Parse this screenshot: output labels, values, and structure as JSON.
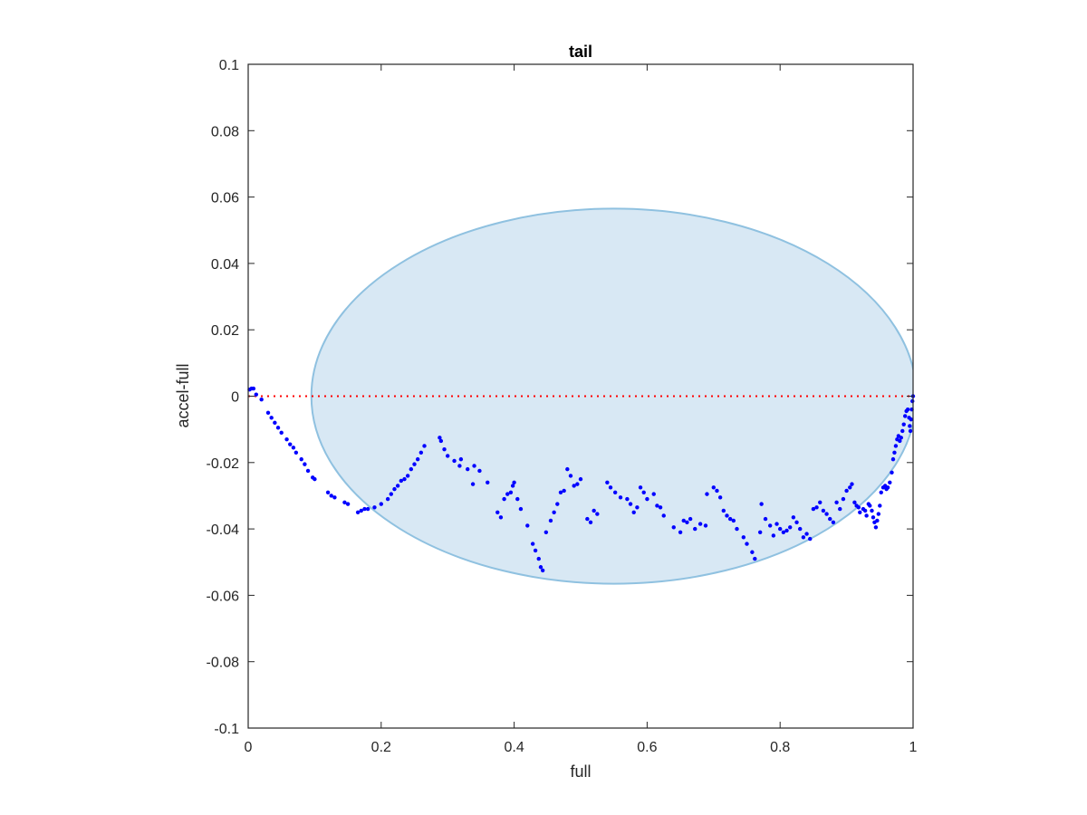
{
  "chart_data": {
    "type": "scatter",
    "title": "tail",
    "xlabel": "full",
    "ylabel": "accel-full",
    "xlim": [
      0,
      1
    ],
    "ylim": [
      -0.1,
      0.1
    ],
    "xticks": [
      0,
      0.2,
      0.4,
      0.6,
      0.8,
      1
    ],
    "xtick_labels": [
      "0",
      "0.2",
      "0.4",
      "0.6",
      "0.8",
      "1"
    ],
    "yticks": [
      -0.1,
      -0.08,
      -0.06,
      -0.04,
      -0.02,
      0,
      0.02,
      0.04,
      0.06,
      0.08,
      0.1
    ],
    "ytick_labels": [
      "-0.1",
      "-0.08",
      "-0.06",
      "-0.04",
      "-0.02",
      "0",
      "0.02",
      "0.04",
      "0.06",
      "0.08",
      "0.1"
    ],
    "grid": false,
    "colors": {
      "points": "#0000ff",
      "zero_line": "#ff0000",
      "ellipse_fill": "#d8e8f4",
      "ellipse_stroke": "#8fc1e0",
      "axes": "#262626"
    },
    "zero_line": {
      "y": 0,
      "style": "dotted"
    },
    "ellipse": {
      "cx": 0.55,
      "cy": 0.0,
      "rx": 0.455,
      "ry": 0.0565
    },
    "points": [
      [
        0.002,
        0.002
      ],
      [
        0.005,
        0.0023
      ],
      [
        0.008,
        0.0023
      ],
      [
        0.012,
        0.0005
      ],
      [
        0.02,
        -0.001
      ],
      [
        0.03,
        -0.005
      ],
      [
        0.035,
        -0.0065
      ],
      [
        0.04,
        -0.008
      ],
      [
        0.045,
        -0.0095
      ],
      [
        0.05,
        -0.011
      ],
      [
        0.058,
        -0.013
      ],
      [
        0.063,
        -0.0145
      ],
      [
        0.068,
        -0.0155
      ],
      [
        0.072,
        -0.017
      ],
      [
        0.08,
        -0.019
      ],
      [
        0.085,
        -0.0205
      ],
      [
        0.09,
        -0.0225
      ],
      [
        0.097,
        -0.0245
      ],
      [
        0.1,
        -0.025
      ],
      [
        0.12,
        -0.029
      ],
      [
        0.125,
        -0.03
      ],
      [
        0.13,
        -0.0305
      ],
      [
        0.145,
        -0.032
      ],
      [
        0.15,
        -0.0325
      ],
      [
        0.165,
        -0.035
      ],
      [
        0.17,
        -0.0345
      ],
      [
        0.175,
        -0.034
      ],
      [
        0.18,
        -0.034
      ],
      [
        0.19,
        -0.0335
      ],
      [
        0.2,
        -0.0325
      ],
      [
        0.21,
        -0.031
      ],
      [
        0.215,
        -0.0295
      ],
      [
        0.22,
        -0.028
      ],
      [
        0.225,
        -0.027
      ],
      [
        0.23,
        -0.0255
      ],
      [
        0.235,
        -0.025
      ],
      [
        0.24,
        -0.024
      ],
      [
        0.245,
        -0.022
      ],
      [
        0.25,
        -0.0205
      ],
      [
        0.255,
        -0.019
      ],
      [
        0.26,
        -0.017
      ],
      [
        0.265,
        -0.015
      ],
      [
        0.288,
        -0.0125
      ],
      [
        0.29,
        -0.0135
      ],
      [
        0.295,
        -0.016
      ],
      [
        0.3,
        -0.018
      ],
      [
        0.31,
        -0.0195
      ],
      [
        0.318,
        -0.021
      ],
      [
        0.32,
        -0.019
      ],
      [
        0.33,
        -0.022
      ],
      [
        0.34,
        -0.021
      ],
      [
        0.338,
        -0.0265
      ],
      [
        0.348,
        -0.0225
      ],
      [
        0.36,
        -0.026
      ],
      [
        0.375,
        -0.035
      ],
      [
        0.38,
        -0.0365
      ],
      [
        0.385,
        -0.031
      ],
      [
        0.39,
        -0.0295
      ],
      [
        0.395,
        -0.029
      ],
      [
        0.4,
        -0.026
      ],
      [
        0.398,
        -0.027
      ],
      [
        0.405,
        -0.031
      ],
      [
        0.41,
        -0.034
      ],
      [
        0.42,
        -0.039
      ],
      [
        0.428,
        -0.0445
      ],
      [
        0.432,
        -0.0465
      ],
      [
        0.437,
        -0.049
      ],
      [
        0.44,
        -0.0515
      ],
      [
        0.443,
        -0.0525
      ],
      [
        0.448,
        -0.041
      ],
      [
        0.455,
        -0.0375
      ],
      [
        0.46,
        -0.035
      ],
      [
        0.465,
        -0.0325
      ],
      [
        0.47,
        -0.029
      ],
      [
        0.475,
        -0.0285
      ],
      [
        0.48,
        -0.022
      ],
      [
        0.485,
        -0.024
      ],
      [
        0.49,
        -0.027
      ],
      [
        0.495,
        -0.0265
      ],
      [
        0.5,
        -0.025
      ],
      [
        0.51,
        -0.037
      ],
      [
        0.515,
        -0.038
      ],
      [
        0.52,
        -0.0345
      ],
      [
        0.525,
        -0.0355
      ],
      [
        0.54,
        -0.026
      ],
      [
        0.545,
        -0.0275
      ],
      [
        0.552,
        -0.029
      ],
      [
        0.56,
        -0.0305
      ],
      [
        0.57,
        -0.031
      ],
      [
        0.575,
        -0.0325
      ],
      [
        0.58,
        -0.035
      ],
      [
        0.585,
        -0.0335
      ],
      [
        0.59,
        -0.0275
      ],
      [
        0.595,
        -0.029
      ],
      [
        0.6,
        -0.031
      ],
      [
        0.61,
        -0.0295
      ],
      [
        0.615,
        -0.033
      ],
      [
        0.62,
        -0.0335
      ],
      [
        0.625,
        -0.036
      ],
      [
        0.64,
        -0.0395
      ],
      [
        0.65,
        -0.041
      ],
      [
        0.655,
        -0.0375
      ],
      [
        0.66,
        -0.038
      ],
      [
        0.665,
        -0.037
      ],
      [
        0.672,
        -0.04
      ],
      [
        0.68,
        -0.0385
      ],
      [
        0.688,
        -0.039
      ],
      [
        0.69,
        -0.0295
      ],
      [
        0.7,
        -0.0275
      ],
      [
        0.705,
        -0.0285
      ],
      [
        0.71,
        -0.0305
      ],
      [
        0.715,
        -0.0345
      ],
      [
        0.72,
        -0.036
      ],
      [
        0.725,
        -0.037
      ],
      [
        0.73,
        -0.0375
      ],
      [
        0.735,
        -0.04
      ],
      [
        0.745,
        -0.0425
      ],
      [
        0.75,
        -0.0445
      ],
      [
        0.758,
        -0.047
      ],
      [
        0.762,
        -0.049
      ],
      [
        0.77,
        -0.041
      ],
      [
        0.772,
        -0.0325
      ],
      [
        0.778,
        -0.037
      ],
      [
        0.785,
        -0.039
      ],
      [
        0.79,
        -0.042
      ],
      [
        0.795,
        -0.0385
      ],
      [
        0.8,
        -0.04
      ],
      [
        0.805,
        -0.041
      ],
      [
        0.81,
        -0.0405
      ],
      [
        0.815,
        -0.0395
      ],
      [
        0.82,
        -0.0365
      ],
      [
        0.825,
        -0.038
      ],
      [
        0.83,
        -0.04
      ],
      [
        0.835,
        -0.0425
      ],
      [
        0.84,
        -0.0415
      ],
      [
        0.845,
        -0.043
      ],
      [
        0.85,
        -0.034
      ],
      [
        0.855,
        -0.0335
      ],
      [
        0.86,
        -0.032
      ],
      [
        0.865,
        -0.0345
      ],
      [
        0.87,
        -0.0355
      ],
      [
        0.875,
        -0.037
      ],
      [
        0.88,
        -0.038
      ],
      [
        0.885,
        -0.032
      ],
      [
        0.89,
        -0.034
      ],
      [
        0.895,
        -0.031
      ],
      [
        0.9,
        -0.0285
      ],
      [
        0.905,
        -0.0275
      ],
      [
        0.908,
        -0.0265
      ],
      [
        0.912,
        -0.032
      ],
      [
        0.915,
        -0.033
      ],
      [
        0.918,
        -0.0335
      ],
      [
        0.92,
        -0.035
      ],
      [
        0.925,
        -0.034
      ],
      [
        0.928,
        -0.0345
      ],
      [
        0.93,
        -0.036
      ],
      [
        0.933,
        -0.0325
      ],
      [
        0.935,
        -0.033
      ],
      [
        0.938,
        -0.0345
      ],
      [
        0.94,
        -0.0365
      ],
      [
        0.942,
        -0.038
      ],
      [
        0.944,
        -0.0395
      ],
      [
        0.946,
        -0.0375
      ],
      [
        0.948,
        -0.0355
      ],
      [
        0.95,
        -0.033
      ],
      [
        0.952,
        -0.029
      ],
      [
        0.955,
        -0.0275
      ],
      [
        0.958,
        -0.027
      ],
      [
        0.96,
        -0.028
      ],
      [
        0.962,
        -0.0275
      ],
      [
        0.965,
        -0.026
      ],
      [
        0.968,
        -0.023
      ],
      [
        0.97,
        -0.019
      ],
      [
        0.972,
        -0.017
      ],
      [
        0.974,
        -0.015
      ],
      [
        0.976,
        -0.013
      ],
      [
        0.978,
        -0.012
      ],
      [
        0.98,
        -0.0135
      ],
      [
        0.982,
        -0.0125
      ],
      [
        0.984,
        -0.0105
      ],
      [
        0.986,
        -0.0085
      ],
      [
        0.988,
        -0.006
      ],
      [
        0.99,
        -0.0045
      ],
      [
        0.992,
        -0.004
      ],
      [
        0.994,
        -0.0065
      ],
      [
        0.995,
        -0.009
      ],
      [
        0.996,
        -0.0105
      ],
      [
        0.997,
        -0.007
      ],
      [
        0.998,
        -0.004
      ],
      [
        0.999,
        -0.0015
      ],
      [
        1.0,
        0.0
      ]
    ]
  }
}
